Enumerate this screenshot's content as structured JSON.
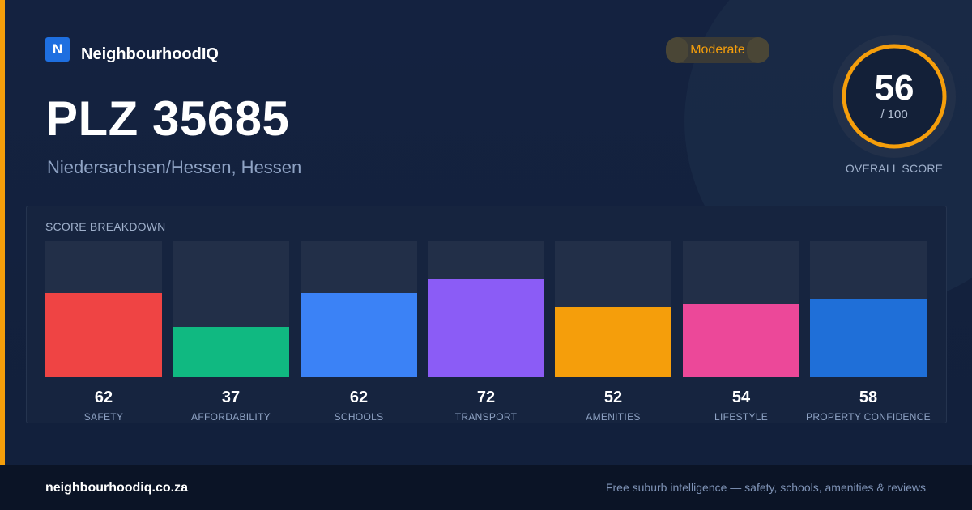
{
  "brand": {
    "logo_letter": "N",
    "name": "NeighbourhoodIQ"
  },
  "badge": {
    "label": "Moderate"
  },
  "title": "PLZ 35685",
  "subtitle": "Niedersachsen/Hessen, Hessen",
  "overall": {
    "value": "56",
    "max": "/ 100",
    "label": "OVERALL SCORE",
    "fraction": 0.56
  },
  "breakdown": {
    "heading": "SCORE BREAKDOWN",
    "items": [
      {
        "value": "62",
        "label": "SAFETY",
        "color": "#ef4444"
      },
      {
        "value": "37",
        "label": "AFFORDABILITY",
        "color": "#10b981"
      },
      {
        "value": "62",
        "label": "SCHOOLS",
        "color": "#3b82f6"
      },
      {
        "value": "72",
        "label": "TRANSPORT",
        "color": "#8b5cf6"
      },
      {
        "value": "52",
        "label": "AMENITIES",
        "color": "#f59e0b"
      },
      {
        "value": "54",
        "label": "LIFESTYLE",
        "color": "#ec4899"
      },
      {
        "value": "58",
        "label": "PROPERTY CONFIDENCE",
        "color": "#1f6fd8"
      }
    ]
  },
  "footer": {
    "url": "neighbourhoodiq.co.za",
    "tagline": "Free suburb intelligence — safety, schools, amenities & reviews"
  },
  "colors": {
    "accent": "#f59e0b",
    "background": "#12203b",
    "brand": "#1e6fe0"
  }
}
